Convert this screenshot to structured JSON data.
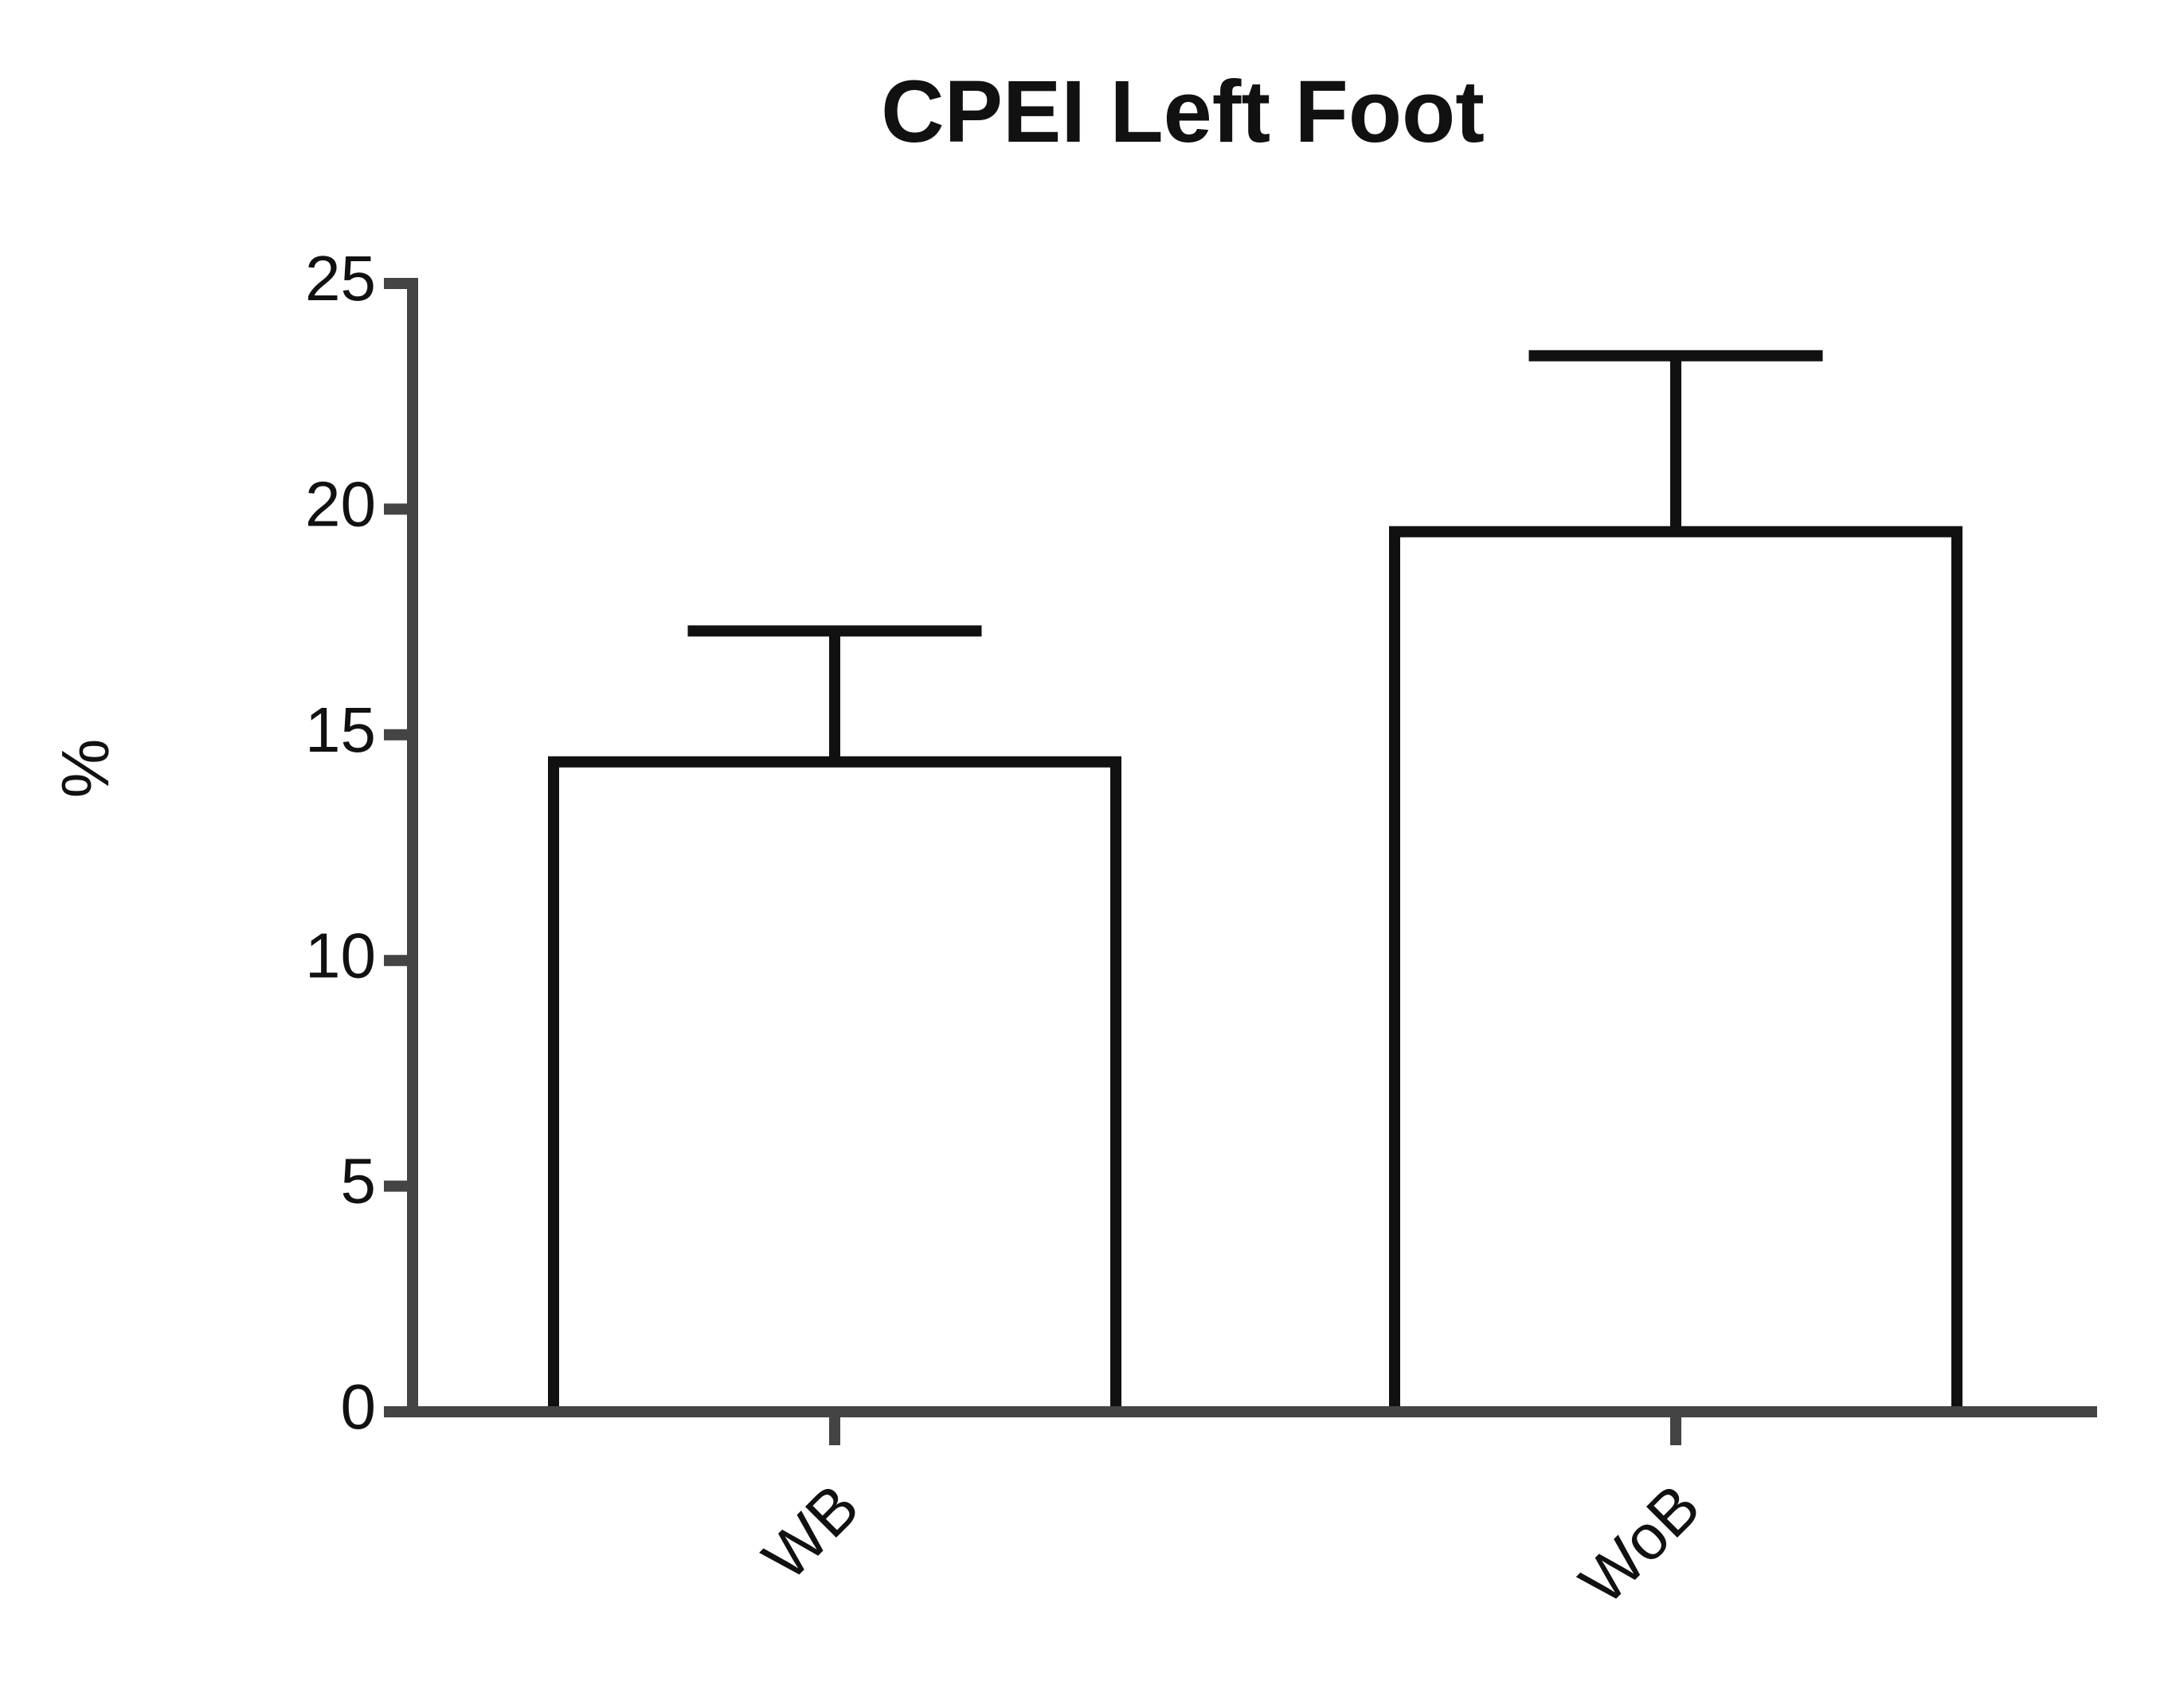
{
  "chart_data": {
    "type": "bar",
    "title": "CPEI Left Foot",
    "y_label": "%",
    "categories": [
      "WB",
      "WoB"
    ],
    "values": [
      14.4,
      19.5
    ],
    "errors": [
      2.9,
      3.9
    ],
    "color": "#ffffff",
    "edge_color": "#111111",
    "ylim": [
      0,
      25
    ],
    "yticks": [
      0,
      5,
      10,
      15,
      20,
      25
    ],
    "grid": false
  }
}
